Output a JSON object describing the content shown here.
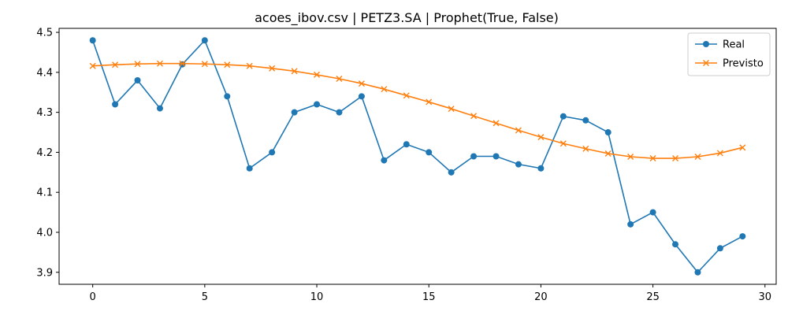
{
  "chart_data": {
    "type": "line",
    "title": "acoes_ibov.csv | PETZ3.SA | Prophet(True, False)",
    "xlabel": "",
    "ylabel": "",
    "xlim": [
      -1.5,
      30.5
    ],
    "ylim": [
      3.87,
      4.51
    ],
    "xticks": [
      0,
      5,
      10,
      15,
      20,
      25,
      30
    ],
    "yticks": [
      3.9,
      4.0,
      4.1,
      4.2,
      4.3,
      4.4,
      4.5
    ],
    "grid": false,
    "legend_position": "top-right",
    "x": [
      0,
      1,
      2,
      3,
      4,
      5,
      6,
      7,
      8,
      9,
      10,
      11,
      12,
      13,
      14,
      15,
      16,
      17,
      18,
      19,
      20,
      21,
      22,
      23,
      24,
      25,
      26,
      27,
      28,
      29
    ],
    "series": [
      {
        "name": "Real",
        "color": "#1f77b4",
        "marker": "circle",
        "values": [
          4.48,
          4.32,
          4.38,
          4.31,
          4.42,
          4.48,
          4.34,
          4.16,
          4.2,
          4.3,
          4.32,
          4.3,
          4.34,
          4.18,
          4.22,
          4.2,
          4.15,
          4.19,
          4.19,
          4.17,
          4.16,
          4.29,
          4.28,
          4.25,
          4.02,
          4.05,
          3.97,
          3.9,
          3.96,
          3.99
        ]
      },
      {
        "name": "Previsto",
        "color": "#ff7f0e",
        "marker": "x",
        "values": [
          4.416,
          4.419,
          4.421,
          4.422,
          4.422,
          4.421,
          4.419,
          4.416,
          4.41,
          4.403,
          4.394,
          4.384,
          4.372,
          4.358,
          4.342,
          4.326,
          4.309,
          4.291,
          4.273,
          4.255,
          4.238,
          4.222,
          4.209,
          4.197,
          4.189,
          4.185,
          4.185,
          4.189,
          4.198,
          4.212
        ]
      }
    ]
  }
}
